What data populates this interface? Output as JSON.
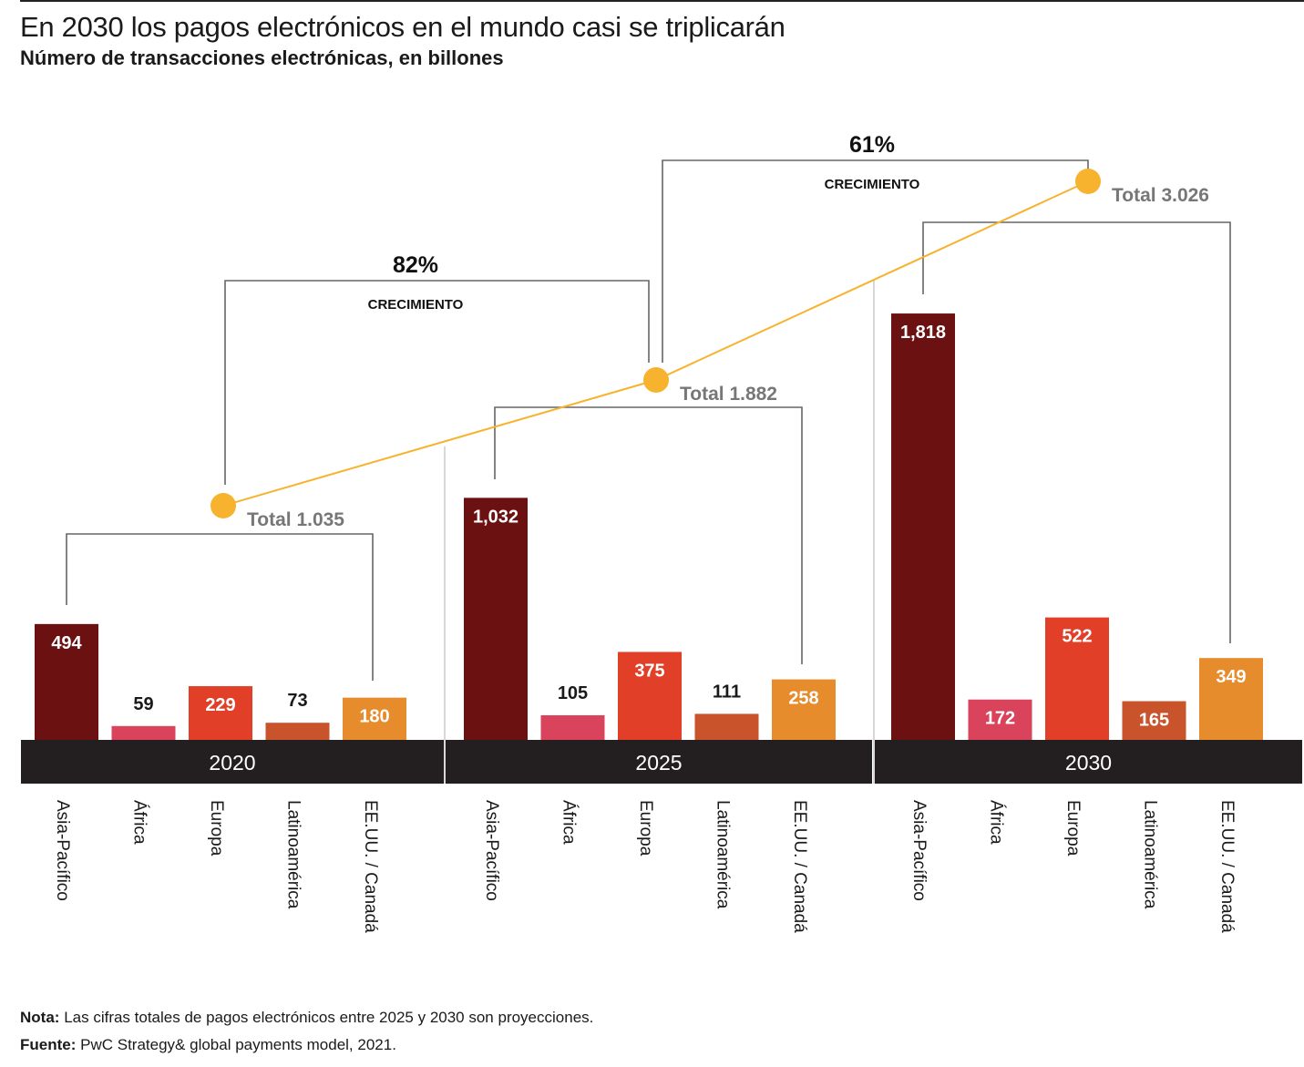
{
  "title": "En 2030 los pagos electrónicos en el mundo casi se triplicarán",
  "subtitle": "Número de transacciones electrónicas, en billones",
  "note_label": "Nota:",
  "note_text": "Las cifras totales de pagos electrónicos entre 2025 y 2030 son proyecciones.",
  "source_label": "Fuente:",
  "source_text": "PwC Strategy& global payments model, 2021.",
  "colors": {
    "Asia-Pacífico": "#6b1111",
    "África": "#d9435c",
    "Europa": "#e13f28",
    "Latinoamérica": "#c9532b",
    "EE.UU. / Canadá": "#e68c2c",
    "band": "#231f20",
    "total_line": "#f7b22e",
    "bracket": "#666666",
    "total_label": "#777777"
  },
  "chart_data": {
    "type": "bar",
    "categories": [
      "Asia-Pacífico",
      "África",
      "Europa",
      "Latinoamérica",
      "EE.UU. / Canadá"
    ],
    "groups": [
      {
        "name": "2020",
        "values": [
          494,
          59,
          229,
          73,
          180
        ],
        "value_labels": [
          "494",
          "59",
          "229",
          "73",
          "180"
        ],
        "total_label": "Total 1.035"
      },
      {
        "name": "2025",
        "values": [
          1032,
          105,
          375,
          111,
          258
        ],
        "value_labels": [
          "1,032",
          "105",
          "375",
          "111",
          "258"
        ],
        "total_label": "Total 1.882"
      },
      {
        "name": "2030",
        "values": [
          1818,
          172,
          522,
          165,
          349
        ],
        "value_labels": [
          "1,818",
          "172",
          "522",
          "165",
          "349"
        ],
        "total_label": "Total 3.026"
      }
    ],
    "totals": [
      1035,
      1882,
      3026
    ],
    "growth": [
      {
        "from": "2020",
        "to": "2025",
        "percent_label": "82%",
        "label": "CRECIMIENTO"
      },
      {
        "from": "2025",
        "to": "2030",
        "percent_label": "61%",
        "label": "CRECIMIENTO"
      }
    ],
    "xlabel": "",
    "ylabel": "",
    "grid": false,
    "legend": "none"
  }
}
